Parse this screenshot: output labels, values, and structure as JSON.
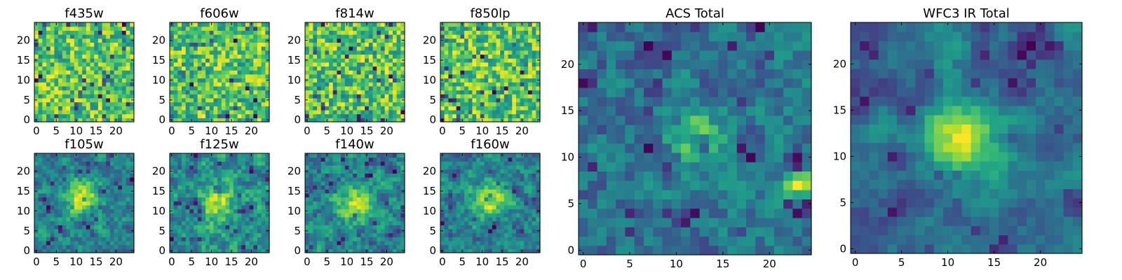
{
  "chart_data": [
    {
      "type": "heatmap",
      "title": "f435w",
      "xticks": [
        0,
        5,
        10,
        15,
        20
      ],
      "yticks": [
        0,
        5,
        10,
        15,
        20
      ],
      "xlim": [
        0,
        25
      ],
      "ylim": [
        0,
        25
      ],
      "grid_size": 25,
      "colormap": "viridis",
      "seed": 11,
      "smooth": 0,
      "blobs": []
    },
    {
      "type": "heatmap",
      "title": "f606w",
      "xticks": [
        0,
        5,
        10,
        15,
        20
      ],
      "yticks": [
        0,
        5,
        10,
        15,
        20
      ],
      "xlim": [
        0,
        25
      ],
      "ylim": [
        0,
        25
      ],
      "grid_size": 25,
      "colormap": "viridis",
      "seed": 23,
      "smooth": 0,
      "blobs": []
    },
    {
      "type": "heatmap",
      "title": "f814w",
      "xticks": [
        0,
        5,
        10,
        15,
        20
      ],
      "yticks": [
        0,
        5,
        10,
        15,
        20
      ],
      "xlim": [
        0,
        25
      ],
      "ylim": [
        0,
        25
      ],
      "grid_size": 25,
      "colormap": "viridis",
      "seed": 37,
      "smooth": 0,
      "blobs": []
    },
    {
      "type": "heatmap",
      "title": "f850lp",
      "xticks": [
        0,
        5,
        10,
        15,
        20
      ],
      "yticks": [
        0,
        5,
        10,
        15,
        20
      ],
      "xlim": [
        0,
        25
      ],
      "ylim": [
        0,
        25
      ],
      "grid_size": 25,
      "colormap": "viridis",
      "seed": 41,
      "smooth": 0,
      "blobs": []
    },
    {
      "type": "heatmap",
      "title": "f105w",
      "xticks": [
        0,
        5,
        10,
        15,
        20
      ],
      "yticks": [
        0,
        5,
        10,
        15,
        20
      ],
      "xlim": [
        0,
        25
      ],
      "ylim": [
        0,
        25
      ],
      "grid_size": 25,
      "colormap": "viridis",
      "seed": 53,
      "smooth": 1,
      "blobs": [
        [
          12,
          13,
          3,
          0.5
        ]
      ]
    },
    {
      "type": "heatmap",
      "title": "f125w",
      "xticks": [
        0,
        5,
        10,
        15,
        20
      ],
      "yticks": [
        0,
        5,
        10,
        15,
        20
      ],
      "xlim": [
        0,
        25
      ],
      "ylim": [
        0,
        25
      ],
      "grid_size": 25,
      "colormap": "viridis",
      "seed": 67,
      "smooth": 1,
      "blobs": [
        [
          11,
          12,
          3,
          0.4
        ]
      ]
    },
    {
      "type": "heatmap",
      "title": "f140w",
      "xticks": [
        0,
        5,
        10,
        15,
        20
      ],
      "yticks": [
        0,
        5,
        10,
        15,
        20
      ],
      "xlim": [
        0,
        25
      ],
      "ylim": [
        0,
        25
      ],
      "grid_size": 25,
      "colormap": "viridis",
      "seed": 71,
      "smooth": 1,
      "blobs": [
        [
          12,
          12,
          3,
          0.4
        ]
      ]
    },
    {
      "type": "heatmap",
      "title": "f160w",
      "xticks": [
        0,
        5,
        10,
        15,
        20
      ],
      "yticks": [
        0,
        5,
        10,
        15,
        20
      ],
      "xlim": [
        0,
        25
      ],
      "ylim": [
        0,
        25
      ],
      "grid_size": 25,
      "colormap": "viridis",
      "seed": 83,
      "smooth": 1,
      "blobs": [
        [
          12,
          13,
          3,
          0.5
        ]
      ]
    },
    {
      "type": "heatmap",
      "title": "ACS Total",
      "xticks": [
        0,
        5,
        10,
        15,
        20
      ],
      "yticks": [
        0,
        5,
        10,
        15,
        20
      ],
      "xlim": [
        0,
        25
      ],
      "ylim": [
        0,
        25
      ],
      "grid_size": 25,
      "colormap": "viridis",
      "seed": 97,
      "smooth": 1,
      "blobs": [
        [
          12,
          12,
          2,
          0.5
        ],
        [
          23,
          7,
          1.2,
          0.6
        ]
      ]
    },
    {
      "type": "heatmap",
      "title": "WFC3 IR Total",
      "xticks": [
        0,
        5,
        10,
        15,
        20
      ],
      "yticks": [
        0,
        5,
        10,
        15,
        20
      ],
      "xlim": [
        0,
        25
      ],
      "ylim": [
        0,
        25
      ],
      "grid_size": 25,
      "colormap": "viridis",
      "seed": 109,
      "smooth": 2,
      "blobs": [
        [
          12,
          12,
          3,
          0.6
        ],
        [
          10,
          21,
          2,
          0.3
        ]
      ]
    }
  ]
}
